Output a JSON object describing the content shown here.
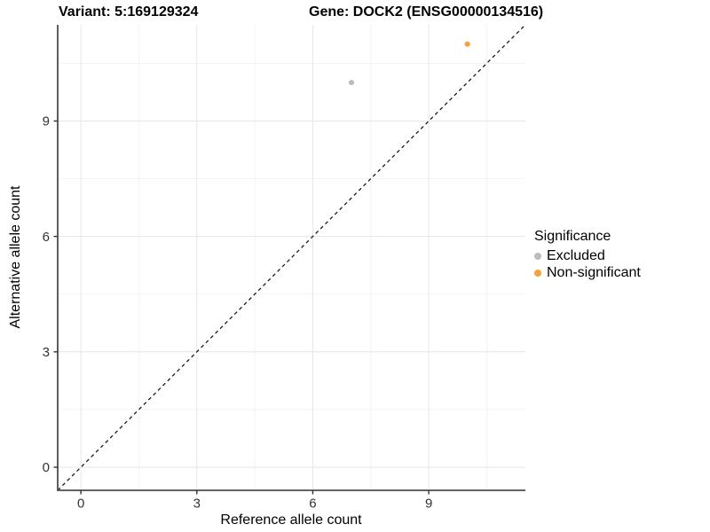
{
  "chart_data": {
    "type": "scatter",
    "title_left": "Variant: 5:169129324",
    "title_right": "Gene: DOCK2 (ENSG00000134516)",
    "xlabel": "Reference allele count",
    "ylabel": "Alternative allele count",
    "xlim": [
      -0.6,
      11.5
    ],
    "ylim": [
      -0.6,
      11.5
    ],
    "xticks": [
      0,
      3,
      6,
      9
    ],
    "yticks": [
      0,
      3,
      6,
      9
    ],
    "xticks_minor": [
      1.5,
      4.5,
      7.5,
      10.5
    ],
    "yticks_minor": [
      1.5,
      4.5,
      7.5,
      10.5
    ],
    "grid": "major+minor",
    "identity_line": {
      "equation": "y = x",
      "style": "dashed"
    },
    "series": [
      {
        "name": "Excluded",
        "color": "#BDBDBD",
        "points": [
          {
            "x": 7,
            "y": 10
          }
        ]
      },
      {
        "name": "Non-significant",
        "color": "#F9A23B",
        "points": [
          {
            "x": 10,
            "y": 11
          }
        ]
      }
    ],
    "legend": {
      "title": "Significance",
      "position": "right"
    }
  },
  "colors": {
    "background": "#FFFFFF",
    "grid_major": "#E6E6E6",
    "grid_minor": "#F3F3F3",
    "axis_line": "#4D4D4D",
    "tick_mark": "#333333",
    "tick_label": "#333333",
    "identity_line": "#1A1A1A"
  }
}
